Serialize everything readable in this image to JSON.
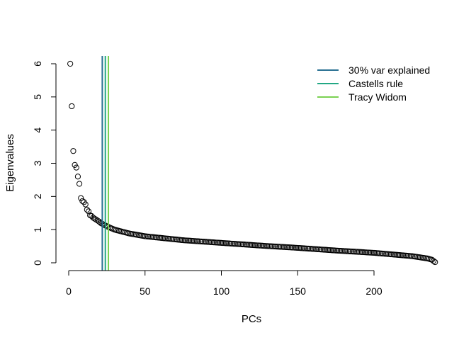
{
  "chart_data": {
    "type": "scatter",
    "xlabel": "PCs",
    "ylabel": "Eigenvalues",
    "xlim": [
      0,
      240
    ],
    "ylim": [
      0,
      6
    ],
    "x_ticks": [
      "0",
      "50",
      "100",
      "150",
      "200"
    ],
    "y_ticks": [
      "0",
      "1",
      "2",
      "3",
      "4",
      "5",
      "6"
    ],
    "grid": false,
    "legend_position": "top-right",
    "eigenvalues_head": [
      6.0,
      4.72,
      3.37,
      2.95,
      2.87,
      2.6,
      2.38,
      1.95,
      1.86,
      1.83,
      1.76,
      1.6,
      1.55,
      1.43,
      1.41,
      1.36,
      1.33,
      1.3,
      1.27,
      1.24
    ],
    "eigenvalues_tail_anchors": [
      [
        21,
        1.2
      ],
      [
        25,
        1.1
      ],
      [
        30,
        1.0
      ],
      [
        40,
        0.88
      ],
      [
        50,
        0.8
      ],
      [
        75,
        0.68
      ],
      [
        100,
        0.6
      ],
      [
        125,
        0.52
      ],
      [
        150,
        0.45
      ],
      [
        175,
        0.37
      ],
      [
        200,
        0.3
      ],
      [
        225,
        0.2
      ],
      [
        235,
        0.13
      ],
      [
        238,
        0.09
      ],
      [
        240,
        0.02
      ]
    ],
    "n_points": 240,
    "vertical_lines": [
      {
        "name": "30% var explained",
        "x": 22,
        "color": "#2A7193"
      },
      {
        "name": "Castells rule",
        "x": 24,
        "color": "#22A884"
      },
      {
        "name": "Tracy Widom",
        "x": 26,
        "color": "#7AD151"
      }
    ]
  }
}
